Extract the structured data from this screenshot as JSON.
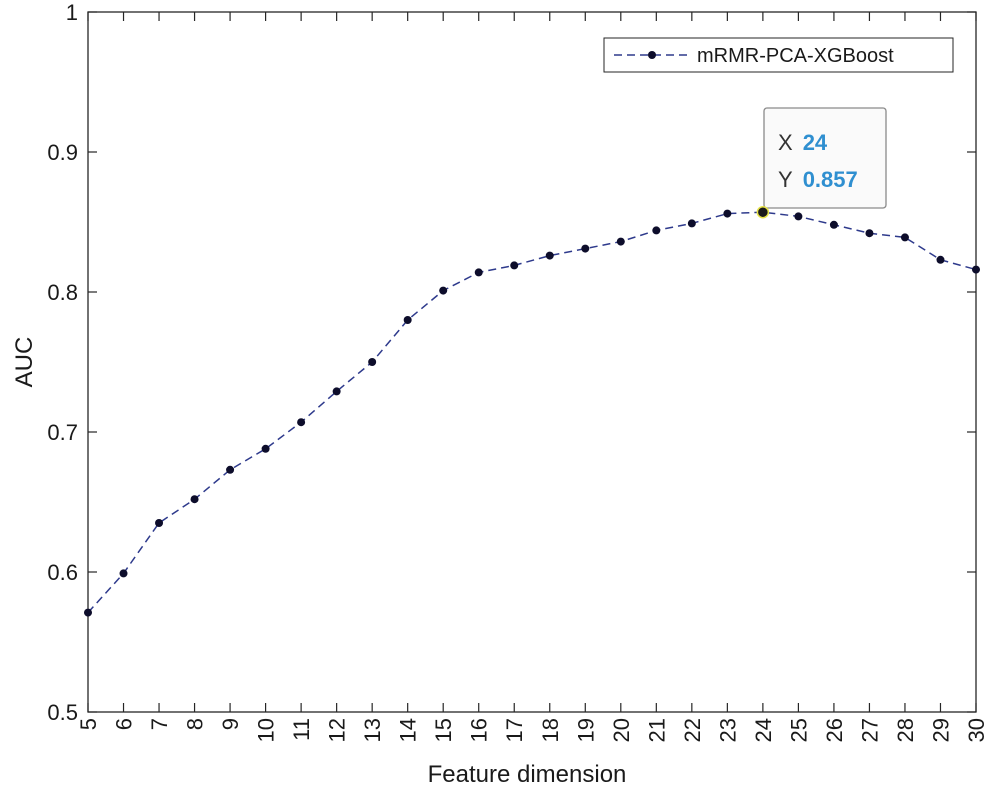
{
  "chart_data": {
    "type": "line",
    "xlabel": "Feature dimension",
    "ylabel": "AUC",
    "xlim": [
      5,
      30
    ],
    "ylim": [
      0.5,
      1
    ],
    "x_ticks": [
      5,
      6,
      7,
      8,
      9,
      10,
      11,
      12,
      13,
      14,
      15,
      16,
      17,
      18,
      19,
      20,
      21,
      22,
      23,
      24,
      25,
      26,
      27,
      28,
      29,
      30
    ],
    "y_ticks": [
      0.5,
      0.6,
      0.7,
      0.8,
      0.9,
      1
    ],
    "y_tick_labels": [
      "0.5",
      "0.6",
      "0.7",
      "0.8",
      "0.9",
      "1"
    ],
    "grid": false,
    "legend_position": "top-right",
    "series": [
      {
        "name": "mRMR-PCA-XGBoost",
        "color": "#2e3a8c",
        "marker_color": "#0d0d2b",
        "line_style": "dashed",
        "x": [
          5,
          6,
          7,
          8,
          9,
          10,
          11,
          12,
          13,
          14,
          15,
          16,
          17,
          18,
          19,
          20,
          21,
          22,
          23,
          24,
          25,
          26,
          27,
          28,
          29,
          30
        ],
        "y": [
          0.571,
          0.599,
          0.635,
          0.652,
          0.673,
          0.688,
          0.707,
          0.729,
          0.75,
          0.78,
          0.801,
          0.814,
          0.819,
          0.826,
          0.831,
          0.836,
          0.844,
          0.849,
          0.856,
          0.857,
          0.854,
          0.848,
          0.842,
          0.839,
          0.823,
          0.816
        ]
      }
    ],
    "datatip": {
      "x_key": "X",
      "y_key": "Y",
      "x_value": "24",
      "y_value": "0.857",
      "x": 24,
      "y": 0.857,
      "value_color": "#2f8fd0"
    }
  }
}
